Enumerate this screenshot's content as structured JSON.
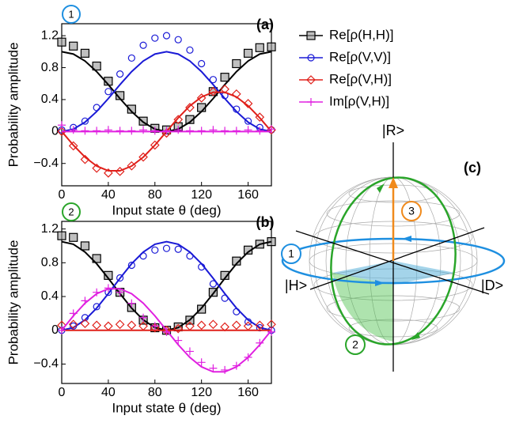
{
  "chart_data": [
    {
      "type": "line",
      "panel": "(a)",
      "badge": "1",
      "xlabel": "Input state θ (deg)",
      "ylabel": "Probability amplitude",
      "x": [
        0,
        10,
        20,
        30,
        40,
        50,
        60,
        70,
        80,
        90,
        100,
        110,
        120,
        130,
        140,
        150,
        160,
        170,
        180
      ],
      "xlim": [
        0,
        180
      ],
      "xticks": [
        0,
        40,
        80,
        120,
        160
      ],
      "ylim": [
        -0.68,
        1.35
      ],
      "yticks": [
        {
          "value": -0.4,
          "label": "−0.4"
        },
        0,
        0.4,
        0.8,
        1.2
      ],
      "series": [
        {
          "name": "Re[ρ(H,H)]",
          "color": "#000000",
          "marker": "square",
          "values": [
            1.12,
            1.07,
            0.98,
            0.82,
            0.63,
            0.45,
            0.28,
            0.13,
            0.04,
            0.02,
            0.06,
            0.15,
            0.3,
            0.5,
            0.68,
            0.85,
            0.98,
            1.05,
            1.06
          ],
          "theory": [
            1,
            0.97,
            0.883,
            0.75,
            0.587,
            0.413,
            0.25,
            0.117,
            0.03,
            0,
            0.03,
            0.117,
            0.25,
            0.413,
            0.587,
            0.75,
            0.883,
            0.97,
            1
          ]
        },
        {
          "name": "Re[ρ(V,V)]",
          "color": "#1a1ad6",
          "marker": "circle",
          "values": [
            0.02,
            0.05,
            0.13,
            0.3,
            0.5,
            0.72,
            0.92,
            1.08,
            1.17,
            1.2,
            1.15,
            1.02,
            0.85,
            0.65,
            0.45,
            0.28,
            0.13,
            0.05,
            0.02
          ],
          "theory": [
            0,
            0.03,
            0.117,
            0.25,
            0.413,
            0.587,
            0.75,
            0.883,
            0.97,
            1,
            0.97,
            0.883,
            0.75,
            0.587,
            0.413,
            0.25,
            0.117,
            0.03,
            0
          ]
        },
        {
          "name": "Re[ρ(V,H)]",
          "color": "#e0201a",
          "marker": "diamond",
          "values": [
            0,
            -0.18,
            -0.35,
            -0.46,
            -0.52,
            -0.5,
            -0.43,
            -0.32,
            -0.17,
            -0.02,
            0.15,
            0.3,
            0.42,
            0.5,
            0.53,
            0.47,
            0.35,
            0.18,
            0.02
          ],
          "theory": [
            0,
            -0.171,
            -0.321,
            -0.433,
            -0.492,
            -0.492,
            -0.433,
            -0.321,
            -0.171,
            0,
            0.171,
            0.321,
            0.433,
            0.492,
            0.492,
            0.433,
            0.321,
            0.171,
            0
          ]
        },
        {
          "name": "Im[ρ(V,H)]",
          "color": "#e020e0",
          "marker": "plus",
          "values": [
            0.08,
            0.02,
            0.01,
            0.01,
            0.02,
            0.01,
            0.01,
            0.02,
            0.01,
            0.01,
            0.02,
            0.01,
            0.01,
            0.02,
            0.01,
            0.01,
            0.02,
            0.01,
            0.03
          ],
          "theory": [
            0,
            0,
            0,
            0,
            0,
            0,
            0,
            0,
            0,
            0,
            0,
            0,
            0,
            0,
            0,
            0,
            0,
            0,
            0
          ]
        }
      ]
    },
    {
      "type": "line",
      "panel": "(b)",
      "badge": "2",
      "xlabel": "Input state θ (deg)",
      "ylabel": "Probability amplitude",
      "x": [
        0,
        10,
        20,
        30,
        40,
        50,
        60,
        70,
        80,
        90,
        100,
        110,
        120,
        130,
        140,
        150,
        160,
        170,
        180
      ],
      "xlim": [
        0,
        180
      ],
      "xticks": [
        0,
        40,
        80,
        120,
        160
      ],
      "ylim": [
        -0.63,
        1.29
      ],
      "yticks": [
        {
          "value": -0.4,
          "label": "−0.4"
        },
        0,
        0.4,
        0.8,
        1.2
      ],
      "series": [
        {
          "color": "#000000",
          "marker": "square",
          "values": [
            1.12,
            1.1,
            1.0,
            0.85,
            0.65,
            0.45,
            0.27,
            0.12,
            0.03,
            0,
            0.04,
            0.12,
            0.25,
            0.45,
            0.65,
            0.82,
            0.95,
            1.02,
            1.05
          ],
          "theory": [
            1.05,
            1.019,
            0.927,
            0.788,
            0.616,
            0.434,
            0.263,
            0.123,
            0.032,
            0,
            0.032,
            0.123,
            0.263,
            0.434,
            0.616,
            0.788,
            0.927,
            1.019,
            1.05
          ]
        },
        {
          "color": "#1a1ad6",
          "marker": "circle",
          "values": [
            0,
            0.05,
            0.15,
            0.28,
            0.45,
            0.62,
            0.77,
            0.88,
            0.95,
            0.97,
            0.96,
            0.88,
            0.75,
            0.55,
            0.38,
            0.22,
            0.1,
            0.03,
            0
          ],
          "theory": [
            0,
            0.032,
            0.123,
            0.263,
            0.434,
            0.616,
            0.788,
            0.927,
            1.019,
            1.05,
            1.019,
            0.927,
            0.788,
            0.616,
            0.434,
            0.263,
            0.123,
            0.032,
            0
          ]
        },
        {
          "color": "#e0201a",
          "marker": "diamond",
          "values": [
            0.06,
            0.07,
            0.08,
            0.06,
            0.05,
            0.07,
            0.06,
            0.05,
            0.03,
            0,
            0.02,
            0.05,
            0.06,
            0.07,
            0.04,
            0.06,
            0.05,
            0.06,
            0.07
          ],
          "theory": [
            0,
            0,
            0,
            0,
            0,
            0,
            0,
            0,
            0,
            0,
            0,
            0,
            0,
            0,
            0,
            0,
            0,
            0,
            0
          ]
        },
        {
          "color": "#e020e0",
          "marker": "plus",
          "values": [
            0,
            0.2,
            0.35,
            0.45,
            0.5,
            0.45,
            0.32,
            0.15,
            0.05,
            -0.02,
            -0.12,
            -0.25,
            -0.38,
            -0.45,
            -0.47,
            -0.42,
            -0.32,
            -0.15,
            -0.02
          ],
          "theory": [
            0,
            0.171,
            0.321,
            0.433,
            0.492,
            0.492,
            0.433,
            0.321,
            0.171,
            0,
            -0.171,
            -0.321,
            -0.433,
            -0.492,
            -0.492,
            -0.433,
            -0.321,
            -0.171,
            0
          ]
        }
      ]
    }
  ],
  "diagram": {
    "label": "(c)",
    "axis_top": "|R>",
    "axis_left": "|H>",
    "axis_right": "|D>",
    "badges": [
      "1",
      "2",
      "3"
    ]
  }
}
